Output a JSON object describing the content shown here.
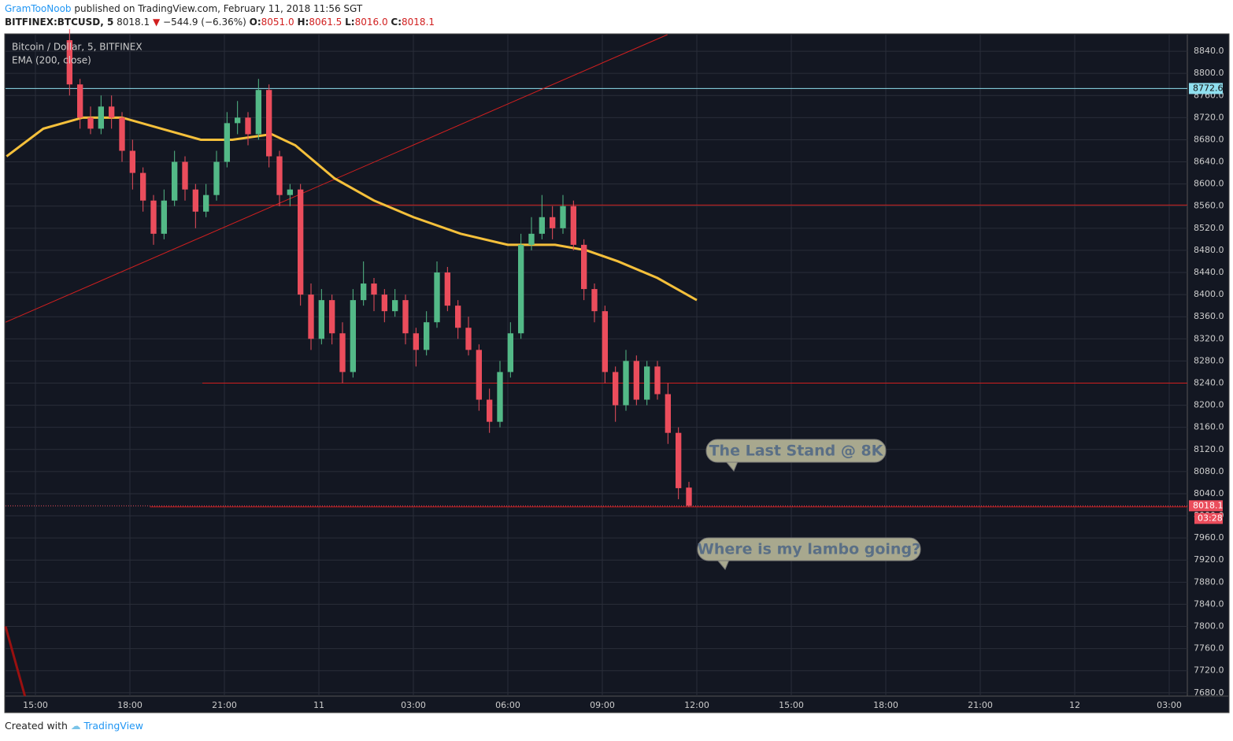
{
  "header": {
    "author": "GramTooNoob",
    "published": "published on TradingView.com, February 11, 2018 11:56 SGT",
    "symbol": "BITFINEX:BTCUSD, 5",
    "last": "8018.1",
    "arrow": "▼",
    "change": "−544.9 (−6.36%)",
    "o_key": "O:",
    "o": "8051.0",
    "h_key": "H:",
    "h": "8061.5",
    "l_key": "L:",
    "l": "8016.0",
    "c_key": "C:",
    "c": "8018.1"
  },
  "footer": {
    "created": "Created with",
    "brand": "TradingView"
  },
  "chart_data": {
    "type": "candlestick",
    "title": "Bitcoin / Dollar, 5, BITFINEX",
    "indicator": "EMA (200, close)",
    "up_color": "#53b987",
    "down_color": "#eb4d5c",
    "grid": true,
    "xlim": [
      843,
      3094.5
    ],
    "ylim": [
      7674,
      8870
    ],
    "xticks": [
      {
        "value": 900,
        "label": "15:00"
      },
      {
        "value": 1080,
        "label": "18:00"
      },
      {
        "value": 1260,
        "label": "21:00"
      },
      {
        "value": 1440,
        "label": "11"
      },
      {
        "value": 1620,
        "label": "03:00"
      },
      {
        "value": 1800,
        "label": "06:00"
      },
      {
        "value": 1980,
        "label": "09:00"
      },
      {
        "value": 2160,
        "label": "12:00"
      },
      {
        "value": 2340,
        "label": "15:00"
      },
      {
        "value": 2520,
        "label": "18:00"
      },
      {
        "value": 2700,
        "label": "21:00"
      },
      {
        "value": 2880,
        "label": "12"
      },
      {
        "value": 3060,
        "label": "03:00"
      }
    ],
    "yticks": [
      {
        "value": 7680,
        "label": "7680.0"
      },
      {
        "value": 7720,
        "label": "7720.0"
      },
      {
        "value": 7760,
        "label": "7760.0"
      },
      {
        "value": 7800,
        "label": "7800.0"
      },
      {
        "value": 7840,
        "label": "7840.0"
      },
      {
        "value": 7880,
        "label": "7880.0"
      },
      {
        "value": 7920,
        "label": "7920.0"
      },
      {
        "value": 7960,
        "label": "7960.0"
      },
      {
        "value": 8000,
        "label": "8000.0"
      },
      {
        "value": 8040,
        "label": "8040.0"
      },
      {
        "value": 8080,
        "label": "8080.0"
      },
      {
        "value": 8120,
        "label": "8120.0"
      },
      {
        "value": 8160,
        "label": "8160.0"
      },
      {
        "value": 8200,
        "label": "8200.0"
      },
      {
        "value": 8240,
        "label": "8240.0"
      },
      {
        "value": 8280,
        "label": "8280.0"
      },
      {
        "value": 8320,
        "label": "8320.0"
      },
      {
        "value": 8360,
        "label": "8360.0"
      },
      {
        "value": 8400,
        "label": "8400.0"
      },
      {
        "value": 8440,
        "label": "8440.0"
      },
      {
        "value": 8480,
        "label": "8480.0"
      },
      {
        "value": 8520,
        "label": "8520.0"
      },
      {
        "value": 8560,
        "label": "8560.0"
      },
      {
        "value": 8600,
        "label": "8600.0"
      },
      {
        "value": 8640,
        "label": "8640.0"
      },
      {
        "value": 8680,
        "label": "8680.0"
      },
      {
        "value": 8720,
        "label": "8720.0"
      },
      {
        "value": 8760,
        "label": "8760.0"
      },
      {
        "value": 8800,
        "label": "8800.0"
      },
      {
        "value": 8840,
        "label": "8840.0"
      }
    ],
    "x": [
      965,
      985,
      1005,
      1025,
      1045,
      1065,
      1085,
      1105,
      1125,
      1145,
      1165,
      1185,
      1205,
      1225,
      1245,
      1265,
      1285,
      1305,
      1325,
      1345,
      1365,
      1385,
      1405,
      1425,
      1445,
      1465,
      1485,
      1505,
      1525,
      1545,
      1565,
      1585,
      1605,
      1625,
      1645,
      1665,
      1685,
      1705,
      1725,
      1745,
      1765,
      1785,
      1805,
      1825,
      1845,
      1865,
      1885,
      1905,
      1925,
      1945,
      1965,
      1985,
      2005,
      2025,
      2045,
      2065,
      2085,
      2105,
      2125,
      2145
    ],
    "open": [
      8860,
      8780,
      8720,
      8700,
      8740,
      8720,
      8660,
      8620,
      8570,
      8510,
      8570,
      8640,
      8590,
      8550,
      8580,
      8640,
      8710,
      8720,
      8690,
      8770,
      8650,
      8580,
      8590,
      8400,
      8320,
      8390,
      8330,
      8260,
      8390,
      8420,
      8400,
      8370,
      8390,
      8330,
      8300,
      8350,
      8440,
      8380,
      8340,
      8300,
      8210,
      8170,
      8260,
      8330,
      8490,
      8510,
      8540,
      8520,
      8560,
      8490,
      8410,
      8370,
      8260,
      8200,
      8280,
      8210,
      8270,
      8220,
      8150,
      8051
    ],
    "high": [
      8880,
      8790,
      8740,
      8760,
      8760,
      8730,
      8680,
      8630,
      8580,
      8590,
      8660,
      8650,
      8600,
      8600,
      8660,
      8730,
      8750,
      8730,
      8790,
      8780,
      8660,
      8600,
      8600,
      8420,
      8410,
      8400,
      8350,
      8410,
      8460,
      8430,
      8410,
      8410,
      8400,
      8340,
      8370,
      8460,
      8450,
      8390,
      8360,
      8310,
      8230,
      8280,
      8350,
      8510,
      8540,
      8580,
      8560,
      8580,
      8570,
      8500,
      8420,
      8380,
      8270,
      8300,
      8290,
      8280,
      8280,
      8240,
      8160,
      8061.5
    ],
    "low": [
      8760,
      8700,
      8690,
      8690,
      8700,
      8640,
      8590,
      8550,
      8490,
      8500,
      8560,
      8570,
      8520,
      8540,
      8570,
      8630,
      8690,
      8670,
      8680,
      8630,
      8560,
      8560,
      8380,
      8300,
      8310,
      8310,
      8240,
      8250,
      8380,
      8370,
      8350,
      8360,
      8310,
      8270,
      8290,
      8340,
      8370,
      8320,
      8290,
      8190,
      8150,
      8160,
      8250,
      8320,
      8480,
      8500,
      8500,
      8510,
      8480,
      8390,
      8350,
      8240,
      8170,
      8190,
      8200,
      8200,
      8210,
      8130,
      8030,
      8016
    ],
    "close": [
      8780,
      8720,
      8700,
      8740,
      8720,
      8660,
      8620,
      8570,
      8510,
      8570,
      8640,
      8590,
      8550,
      8580,
      8640,
      8710,
      8720,
      8690,
      8770,
      8650,
      8580,
      8590,
      8400,
      8320,
      8390,
      8330,
      8260,
      8390,
      8420,
      8400,
      8370,
      8390,
      8330,
      8300,
      8350,
      8440,
      8380,
      8340,
      8300,
      8210,
      8170,
      8260,
      8330,
      8490,
      8510,
      8540,
      8520,
      8560,
      8490,
      8410,
      8370,
      8260,
      8200,
      8280,
      8210,
      8270,
      8220,
      8150,
      8050,
      8018.1
    ],
    "ema": {
      "color": "#f5c03b",
      "x": [
        845,
        915,
        990,
        1065,
        1140,
        1215,
        1275,
        1350,
        1395,
        1470,
        1545,
        1620,
        1710,
        1800,
        1890,
        1950,
        2010,
        2085,
        2160
      ],
      "values": [
        8650,
        8700,
        8720,
        8720,
        8700,
        8680,
        8680,
        8690,
        8670,
        8610,
        8570,
        8540,
        8510,
        8490,
        8490,
        8480,
        8460,
        8430,
        8390
      ]
    },
    "lines": [
      {
        "color": "#8fdfef",
        "points": [
          [
            843,
            8772.6
          ],
          [
            3094.5,
            8772.6
          ]
        ]
      },
      {
        "color": "#d11f1f",
        "points": [
          [
            1230,
            8562
          ],
          [
            3094.5,
            8562
          ]
        ]
      },
      {
        "color": "#d11f1f",
        "points": [
          [
            1218,
            8240
          ],
          [
            3094.5,
            8240
          ]
        ]
      },
      {
        "color": "#d11f1f",
        "points": [
          [
            1118,
            8016
          ],
          [
            3094.5,
            8016
          ]
        ]
      },
      {
        "color": "#d11f1f",
        "points": [
          [
            843,
            8350
          ],
          [
            2104,
            8870
          ]
        ]
      },
      {
        "color": "#9a1010",
        "points": [
          [
            843,
            7800
          ],
          [
            880,
            7674
          ]
        ]
      }
    ],
    "price_labels": [
      {
        "value": 8772.6,
        "color": "#8fdfef"
      },
      {
        "value": 8018.1,
        "color": "#eb4d5c"
      }
    ],
    "countdown": "03:28",
    "annotations": [
      "The Last Stand @ 8K",
      "Where is my lambo going?"
    ]
  }
}
